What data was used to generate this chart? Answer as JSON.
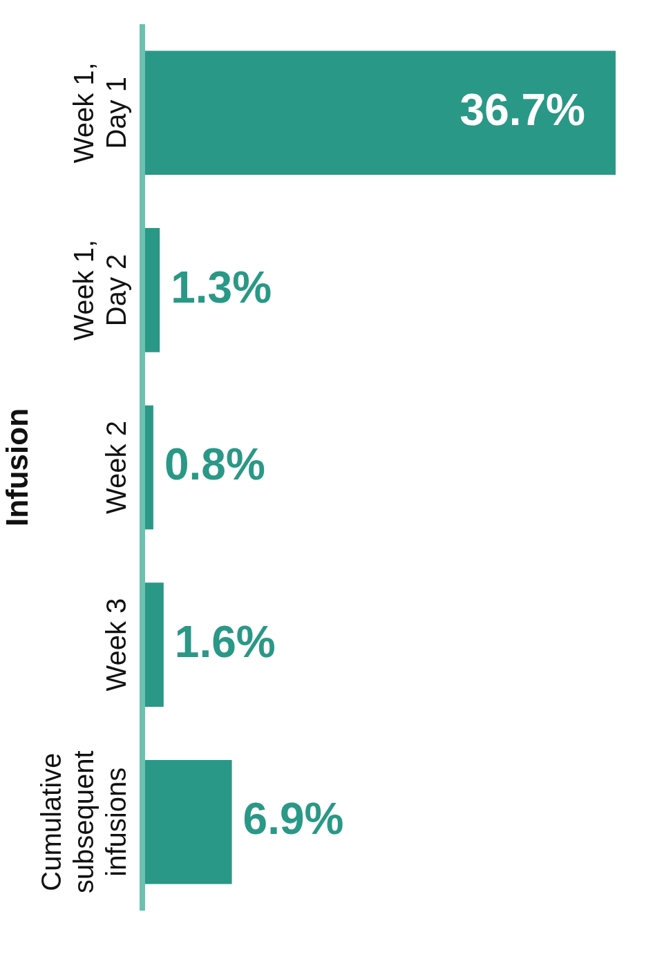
{
  "chart_data": {
    "type": "bar",
    "orientation": "horizontal",
    "ylabel": "Infusion",
    "categories": [
      "Week 1, Day 1",
      "Week 1, Day 2",
      "Week 2",
      "Week 3",
      "Cumulative subsequent infusions"
    ],
    "values": [
      36.7,
      1.3,
      0.8,
      1.6,
      6.9
    ],
    "value_labels": [
      "36.7%",
      "1.3%",
      "0.8%",
      "1.6%",
      "6.9%"
    ],
    "color": "#2a9886",
    "legend": false,
    "tick_labels": "y"
  }
}
